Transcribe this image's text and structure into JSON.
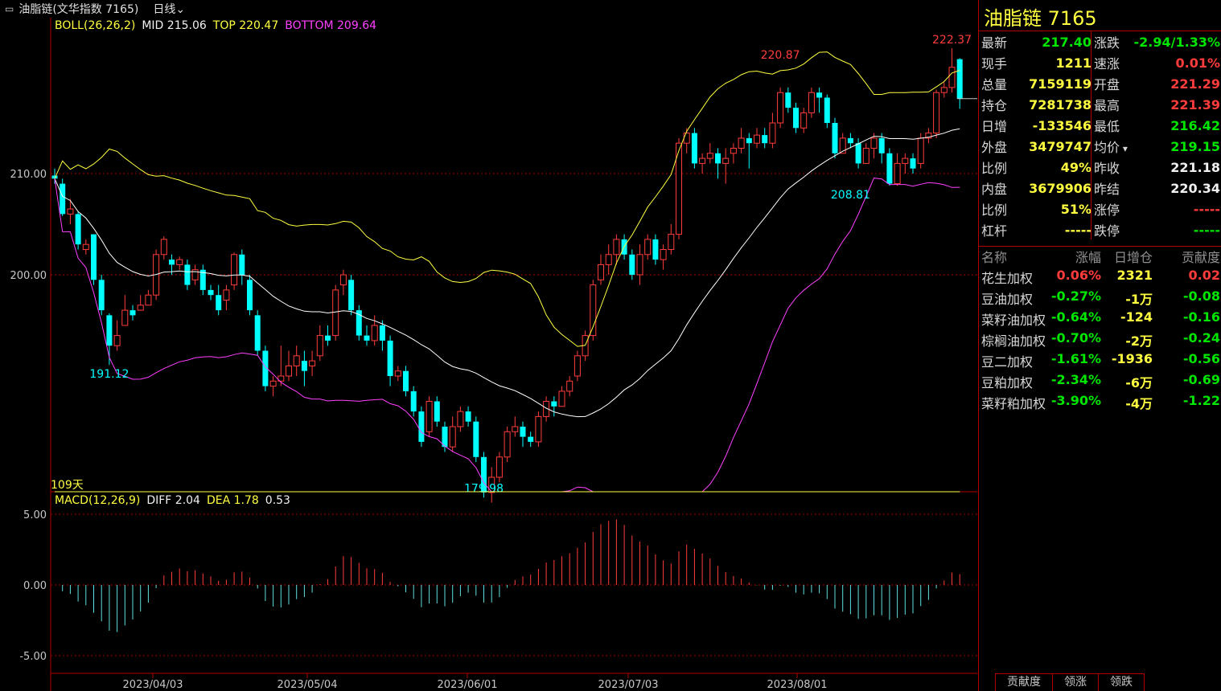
{
  "header": {
    "icon": "link-icon",
    "title": "油脂链(文华指数 7165)",
    "period": "日线"
  },
  "boll": {
    "label": "BOLL(26,26,2)",
    "mid": "MID 215.06",
    "top": "TOP 220.47",
    "bottom": "BOTTOM 209.64",
    "colors": {
      "mid": "#ffffff",
      "top": "#ffff40",
      "bottom": "#ff40ff"
    }
  },
  "macd": {
    "label": "MACD(12,26,9)",
    "diff": "DIFF 2.04",
    "dea": "DEA 1.78",
    "macd": "0.53"
  },
  "chart_labels": {
    "days": "109天",
    "max_label": "222.37",
    "high2_label": "220.87",
    "low2_label": "208.81",
    "low1_label": "191.12",
    "min_label": "179.98"
  },
  "chart_data": {
    "type": "candlestick",
    "price_ticks": [
      "210.00",
      "200.00"
    ],
    "macd_ticks": [
      "5.00",
      "0.00",
      "-5.00"
    ],
    "dates": [
      "2023/04/03",
      "2023/05/04",
      "2023/06/01",
      "2023/07/03",
      "2023/08/01"
    ],
    "last": {
      "open": 221.29,
      "high": 221.39,
      "low": 216.42,
      "close": 217.4
    },
    "macd_last": {
      "diff": 2.04,
      "dea": 1.78,
      "macd": 0.53
    }
  },
  "panel": {
    "title": "油脂链  7165",
    "quote": [
      {
        "l1": "最新",
        "v1": "217.40",
        "c1": "green",
        "l2": "涨跌",
        "v2": "-2.94/1.33%",
        "c2": "green"
      },
      {
        "l1": "现手",
        "v1": "1211",
        "c1": "yellow",
        "l2": "速涨",
        "v2": "0.01%",
        "c2": "red"
      },
      {
        "l1": "总量",
        "v1": "7159119",
        "c1": "yellow",
        "l2": "开盘",
        "v2": "221.29",
        "c2": "red"
      },
      {
        "l1": "持仓",
        "v1": "7281738",
        "c1": "yellow",
        "l2": "最高",
        "v2": "221.39",
        "c2": "red"
      },
      {
        "l1": "日增",
        "v1": "-133546",
        "c1": "yellow",
        "l2": "最低",
        "v2": "216.42",
        "c2": "green"
      },
      {
        "l1": "外盘",
        "v1": "3479747",
        "c1": "yellow",
        "l2": "均价",
        "v2": "219.15",
        "c2": "green"
      },
      {
        "l1": "比例",
        "v1": "49%",
        "c1": "yellow",
        "l2": "昨收",
        "v2": "221.18",
        "c2": "white"
      },
      {
        "l1": "内盘",
        "v1": "3679906",
        "c1": "yellow",
        "l2": "昨结",
        "v2": "220.34",
        "c2": "white"
      },
      {
        "l1": "比例",
        "v1": "51%",
        "c1": "yellow",
        "l2": "涨停",
        "v2": "-----",
        "c2": "red"
      },
      {
        "l1": "杠杆",
        "v1": "-----",
        "c1": "yellow",
        "l2": "跌停",
        "v2": "-----",
        "c2": "green"
      }
    ],
    "components_header": {
      "name": "名称",
      "chg": "涨幅",
      "oi": "日增仓",
      "contrib": "贡献度"
    },
    "components": [
      {
        "name": "花生加权",
        "chg": "0.06%",
        "oi": "2321",
        "contrib": "0.02",
        "color": "red"
      },
      {
        "name": "豆油加权",
        "chg": "-0.27%",
        "oi": "-1万",
        "contrib": "-0.08",
        "color": "green"
      },
      {
        "name": "菜籽油加权",
        "chg": "-0.64%",
        "oi": "-124",
        "contrib": "-0.16",
        "color": "green"
      },
      {
        "name": "棕榈油加权",
        "chg": "-0.70%",
        "oi": "-2万",
        "contrib": "-0.24",
        "color": "green"
      },
      {
        "name": "豆二加权",
        "chg": "-1.61%",
        "oi": "-1936",
        "contrib": "-0.56",
        "color": "green"
      },
      {
        "name": "豆粕加权",
        "chg": "-2.34%",
        "oi": "-6万",
        "contrib": "-0.69",
        "color": "green"
      },
      {
        "name": "菜籽粕加权",
        "chg": "-3.90%",
        "oi": "-4万",
        "contrib": "-1.22",
        "color": "green"
      }
    ],
    "tabs": [
      "贡献度",
      "领涨",
      "领跌"
    ]
  }
}
